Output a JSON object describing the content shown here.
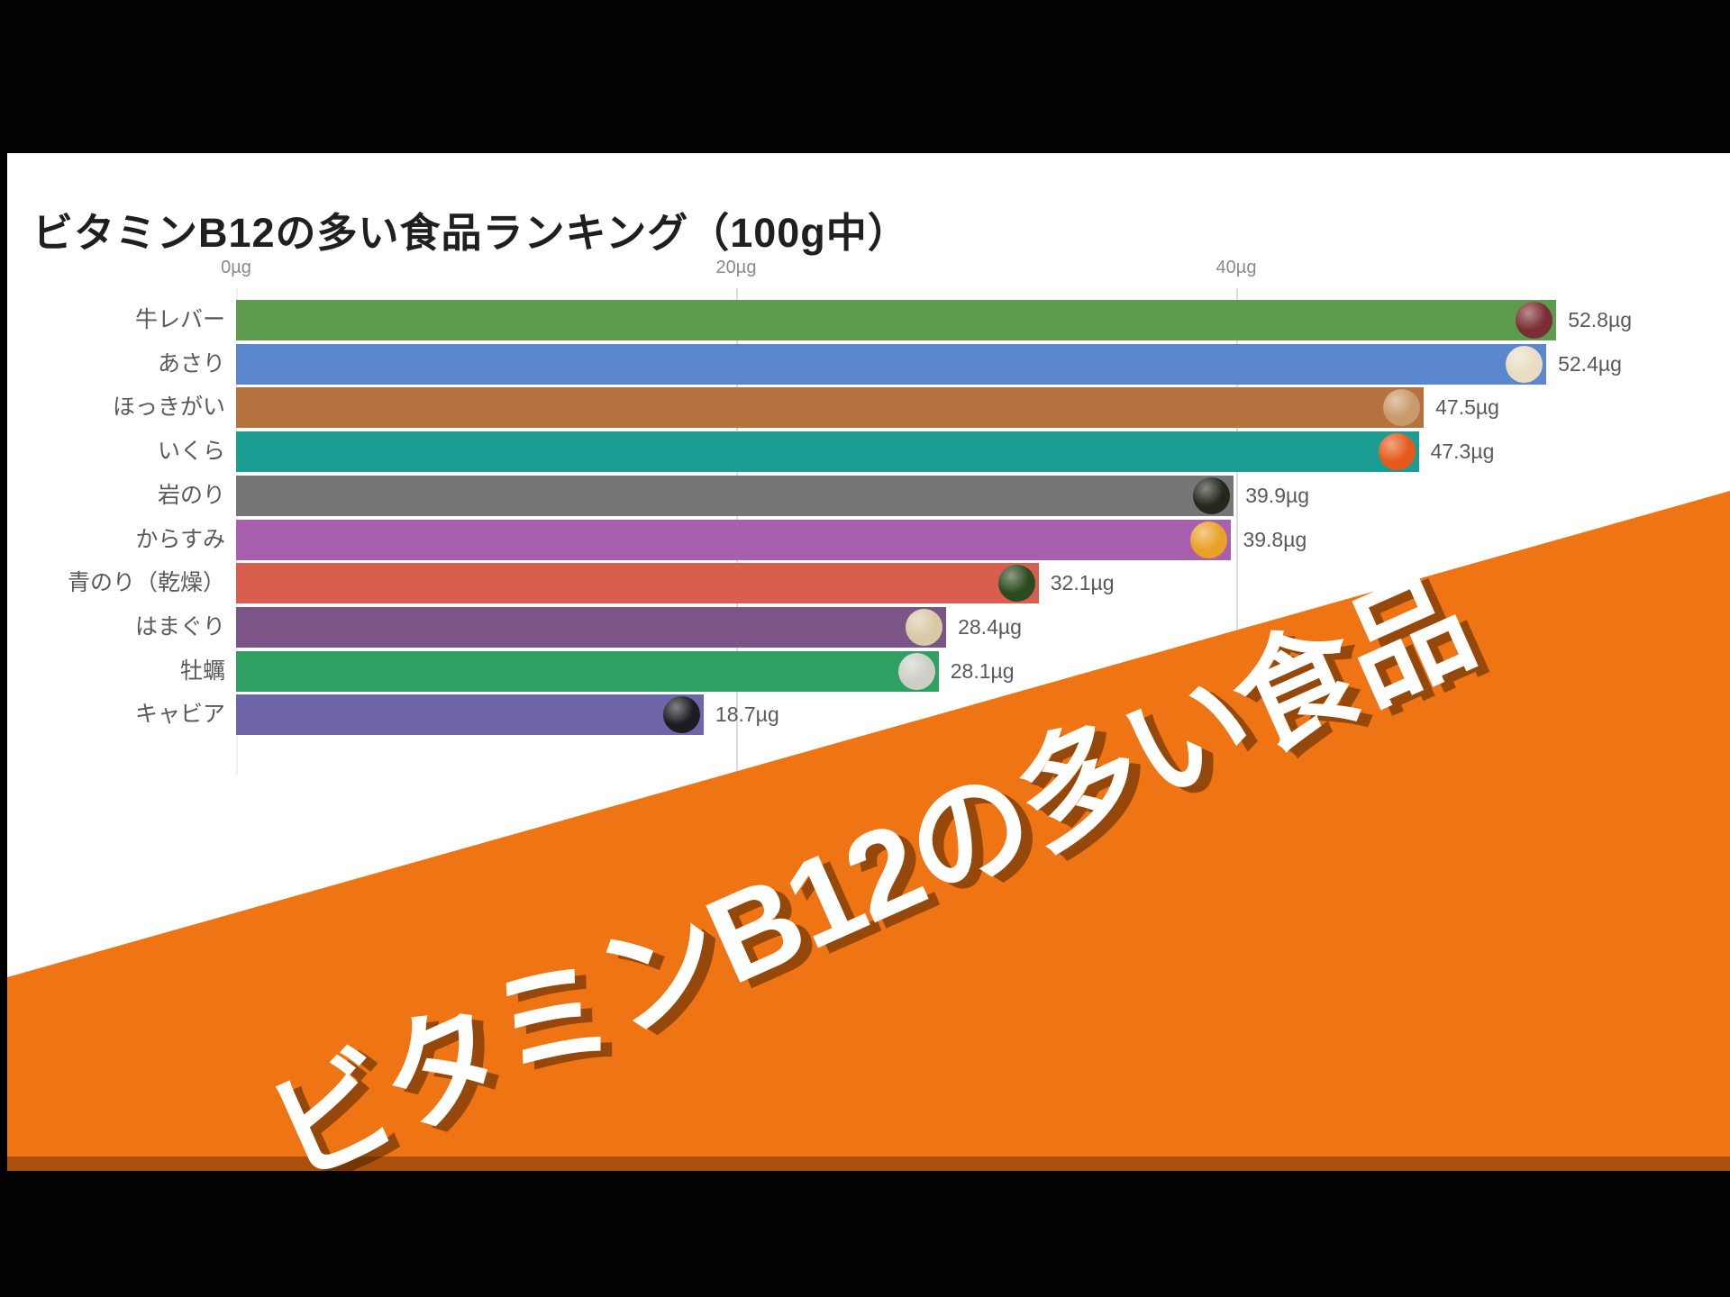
{
  "video": {
    "banner_text": "ビタミンB12の多い食品",
    "banner_color": "#ee7414",
    "banner_shadow_color": "rgba(90,40,0,0.45)",
    "banner_text_color": "#ffffff"
  },
  "chart_data": {
    "type": "bar",
    "orientation": "horizontal",
    "title": "ビタミンB12の多い食品ランキング（100g中）",
    "unit": "µg",
    "xlabel": "",
    "ylabel": "",
    "xlim": [
      0,
      59.5
    ],
    "grid": true,
    "legend": false,
    "x_ticks": [
      {
        "label": "0µg",
        "value": 0
      },
      {
        "label": "20µg",
        "value": 20
      },
      {
        "label": "40µg",
        "value": 40
      }
    ],
    "value_label_color": "#595959",
    "bars": [
      {
        "category": "牛レバー",
        "value": 52.8,
        "label": "52.8µg",
        "color": "#5f9b4c",
        "icon": "beef-liver-icon",
        "icon_color": "#7b2d35"
      },
      {
        "category": "あさり",
        "value": 52.4,
        "label": "52.4µg",
        "color": "#5b87ce",
        "icon": "asari-clam-icon",
        "icon_color": "#e9dcc4"
      },
      {
        "category": "ほっきがい",
        "value": 47.5,
        "label": "47.5µg",
        "color": "#b5723f",
        "icon": "surf-clam-icon",
        "icon_color": "#c99a6b"
      },
      {
        "category": "いくら",
        "value": 47.3,
        "label": "47.3µg",
        "color": "#1a9e94",
        "icon": "salmon-roe-icon",
        "icon_color": "#e55a1c"
      },
      {
        "category": "岩のり",
        "value": 39.9,
        "label": "39.9µg",
        "color": "#767676",
        "icon": "rock-laver-icon",
        "icon_color": "#23281e"
      },
      {
        "category": "からすみ",
        "value": 39.8,
        "label": "39.8µg",
        "color": "#a75fae",
        "icon": "karasumi-icon",
        "icon_color": "#e8a229"
      },
      {
        "category": "青のり（乾燥）",
        "value": 32.1,
        "label": "32.1µg",
        "color": "#d85f4e",
        "icon": "green-laver-icon",
        "icon_color": "#2c4a20"
      },
      {
        "category": "はまぐり",
        "value": 28.4,
        "label": "28.4µg",
        "color": "#7b5587",
        "icon": "hamaguri-clam-icon",
        "icon_color": "#d9c9a6"
      },
      {
        "category": "牡蠣",
        "value": 28.1,
        "label": "28.1µg",
        "color": "#2da062",
        "icon": "oyster-icon",
        "icon_color": "#cdcfc5"
      },
      {
        "category": "キャビア",
        "value": 18.7,
        "label": "18.7µg",
        "color": "#6e66a9",
        "icon": "caviar-icon",
        "icon_color": "#1b1b22"
      }
    ]
  }
}
